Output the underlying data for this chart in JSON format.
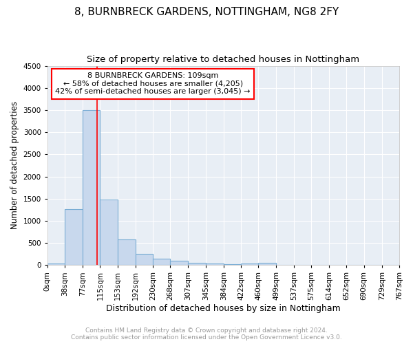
{
  "title": "8, BURNBRECK GARDENS, NOTTINGHAM, NG8 2FY",
  "subtitle": "Size of property relative to detached houses in Nottingham",
  "xlabel": "Distribution of detached houses by size in Nottingham",
  "ylabel": "Number of detached properties",
  "footer_line1": "Contains HM Land Registry data © Crown copyright and database right 2024.",
  "footer_line2": "Contains public sector information licensed under the Open Government Licence v3.0.",
  "bin_labels": [
    "0sqm",
    "38sqm",
    "77sqm",
    "115sqm",
    "153sqm",
    "192sqm",
    "230sqm",
    "268sqm",
    "307sqm",
    "345sqm",
    "384sqm",
    "422sqm",
    "460sqm",
    "499sqm",
    "537sqm",
    "575sqm",
    "614sqm",
    "652sqm",
    "690sqm",
    "729sqm",
    "767sqm"
  ],
  "bin_edges": [
    0,
    38,
    77,
    115,
    153,
    192,
    230,
    268,
    307,
    345,
    384,
    422,
    460,
    499,
    537,
    575,
    614,
    652,
    690,
    729,
    767
  ],
  "bar_heights": [
    30,
    1270,
    3500,
    1480,
    580,
    250,
    140,
    90,
    50,
    30,
    25,
    40,
    50,
    0,
    0,
    0,
    0,
    0,
    0,
    0
  ],
  "bar_color": "#c8d8ed",
  "bar_edgecolor": "#7aadd4",
  "bar_linewidth": 0.8,
  "vline_x": 109,
  "vline_color": "red",
  "vline_linewidth": 1.2,
  "annotation_text": "8 BURNBRECK GARDENS: 109sqm\n← 58% of detached houses are smaller (4,205)\n42% of semi-detached houses are larger (3,045) →",
  "annotation_box_color": "red",
  "annotation_box_facecolor": "white",
  "ylim": [
    0,
    4500
  ],
  "xlim_min": 0,
  "xlim_max": 767,
  "bg_color": "#e8eef5",
  "grid_color": "white",
  "title_fontsize": 11,
  "subtitle_fontsize": 9.5,
  "xlabel_fontsize": 9,
  "ylabel_fontsize": 8.5,
  "tick_fontsize": 7.5,
  "annotation_fontsize": 8,
  "footer_fontsize": 6.5
}
